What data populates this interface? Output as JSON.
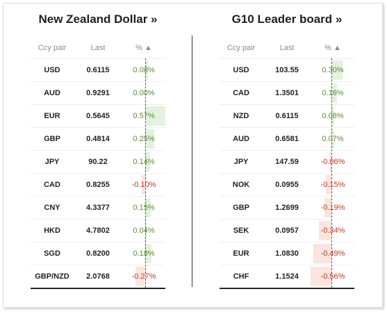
{
  "left": {
    "title": "New Zealand Dollar »",
    "headers": {
      "pair": "Ccy pair",
      "last": "Last",
      "pct": "% ▲"
    },
    "rows": [
      {
        "pair": "USD",
        "last": "0.6115",
        "pct": "0.08%",
        "value": 0.08
      },
      {
        "pair": "AUD",
        "last": "0.9291",
        "pct": "0.00%",
        "value": 0.0
      },
      {
        "pair": "EUR",
        "last": "0.5645",
        "pct": "0.57%",
        "value": 0.57
      },
      {
        "pair": "GBP",
        "last": "0.4814",
        "pct": "0.25%",
        "value": 0.25
      },
      {
        "pair": "JPY",
        "last": "90.22",
        "pct": "0.14%",
        "value": 0.14
      },
      {
        "pair": "CAD",
        "last": "0.8255",
        "pct": "-0.10%",
        "value": -0.1
      },
      {
        "pair": "CNY",
        "last": "4.3377",
        "pct": "0.15%",
        "value": 0.15
      },
      {
        "pair": "HKD",
        "last": "4.7802",
        "pct": "0.04%",
        "value": 0.04
      },
      {
        "pair": "SGD",
        "last": "0.8200",
        "pct": "0.18%",
        "value": 0.18
      },
      {
        "pair": "GBP/NZD",
        "last": "2.0768",
        "pct": "-0.27%",
        "value": -0.27
      }
    ]
  },
  "right": {
    "title": "G10 Leader board »",
    "headers": {
      "pair": "Ccy pair",
      "last": "Last",
      "pct": "% ▲"
    },
    "rows": [
      {
        "pair": "USD",
        "last": "103.55",
        "pct": "0.30%",
        "value": 0.3
      },
      {
        "pair": "CAD",
        "last": "1.3501",
        "pct": "0.16%",
        "value": 0.16
      },
      {
        "pair": "NZD",
        "last": "0.6115",
        "pct": "0.08%",
        "value": 0.08
      },
      {
        "pair": "AUD",
        "last": "0.6581",
        "pct": "0.07%",
        "value": 0.07
      },
      {
        "pair": "JPY",
        "last": "147.59",
        "pct": "-0.06%",
        "value": -0.06
      },
      {
        "pair": "NOK",
        "last": "0.0955",
        "pct": "-0.15%",
        "value": -0.15
      },
      {
        "pair": "GBP",
        "last": "1.2699",
        "pct": "-0.19%",
        "value": -0.19
      },
      {
        "pair": "SEK",
        "last": "0.0957",
        "pct": "-0.34%",
        "value": -0.34
      },
      {
        "pair": "EUR",
        "last": "1.0830",
        "pct": "-0.49%",
        "value": -0.49
      },
      {
        "pair": "CHF",
        "last": "1.1524",
        "pct": "-0.56%",
        "value": -0.56
      }
    ]
  },
  "colors": {
    "positive": "#5b8a3a",
    "negative": "#c0392b",
    "positive_bar": "#e3f2dc",
    "negative_bar": "#fbe4dc"
  }
}
